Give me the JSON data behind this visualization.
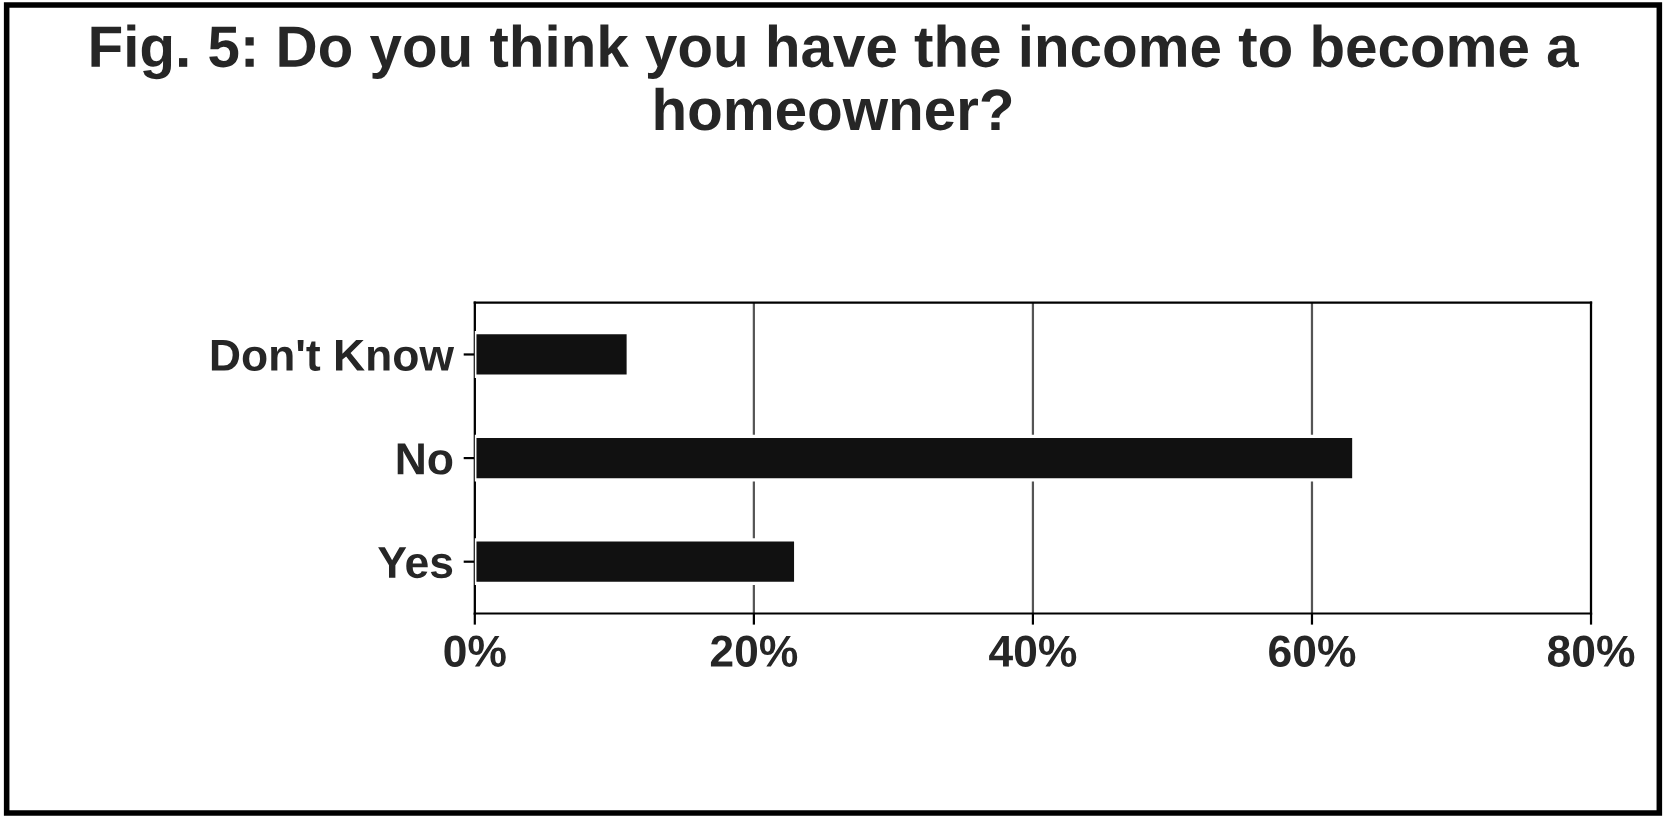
{
  "chart_data": {
    "type": "bar",
    "orientation": "horizontal",
    "title": "Fig. 5: Do you think you have the income to become a homeowner?",
    "categories": [
      "Don't Know",
      "No",
      "Yes"
    ],
    "values": [
      11,
      63,
      23
    ],
    "color": "#111111",
    "xlim": [
      0,
      80
    ],
    "xticks": [
      {
        "value": 0,
        "label": "0%"
      },
      {
        "value": 20,
        "label": "20%"
      },
      {
        "value": 40,
        "label": "40%"
      },
      {
        "value": 60,
        "label": "60%"
      },
      {
        "value": 80,
        "label": "80%"
      }
    ],
    "grid": "x",
    "legend": false
  }
}
